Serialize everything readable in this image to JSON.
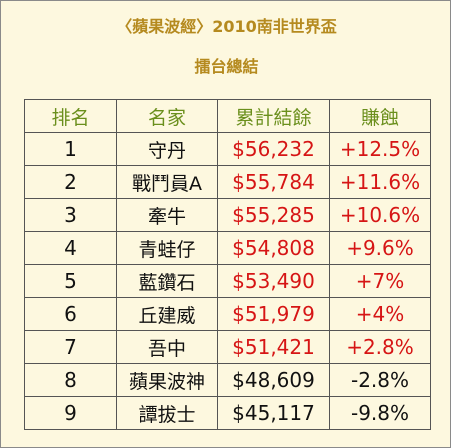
{
  "title": {
    "line1": "〈蘋果波經〉2010南非世界盃",
    "line2": "擂台總結"
  },
  "colors": {
    "title": "#b58a1f",
    "header": "#6a8f1c",
    "profit": "#d61515",
    "text": "#111111",
    "background": "#fdf8df"
  },
  "table": {
    "headers": [
      "排名",
      "名家",
      "累計結餘",
      "賺蝕"
    ],
    "rows": [
      {
        "rank": "1",
        "name": "守丹",
        "balance": "$56,232",
        "change": "+12.5%",
        "profit": true
      },
      {
        "rank": "2",
        "name": "戰鬥員A",
        "balance": "$55,784",
        "change": "+11.6%",
        "profit": true
      },
      {
        "rank": "3",
        "name": "牽牛",
        "balance": "$55,285",
        "change": "+10.6%",
        "profit": true
      },
      {
        "rank": "4",
        "name": "青蛙仔",
        "balance": "$54,808",
        "change": "+9.6%",
        "profit": true
      },
      {
        "rank": "5",
        "name": "藍鑽石",
        "balance": "$53,490",
        "change": "+7%",
        "profit": true
      },
      {
        "rank": "6",
        "name": "丘建威",
        "balance": "$51,979",
        "change": "+4%",
        "profit": true
      },
      {
        "rank": "7",
        "name": "吾中",
        "balance": "$51,421",
        "change": "+2.8%",
        "profit": true
      },
      {
        "rank": "8",
        "name": "蘋果波神",
        "balance": "$48,609",
        "change": "-2.8%",
        "profit": false
      },
      {
        "rank": "9",
        "name": "譚拔士",
        "balance": "$45,117",
        "change": "-9.8%",
        "profit": false
      }
    ]
  }
}
